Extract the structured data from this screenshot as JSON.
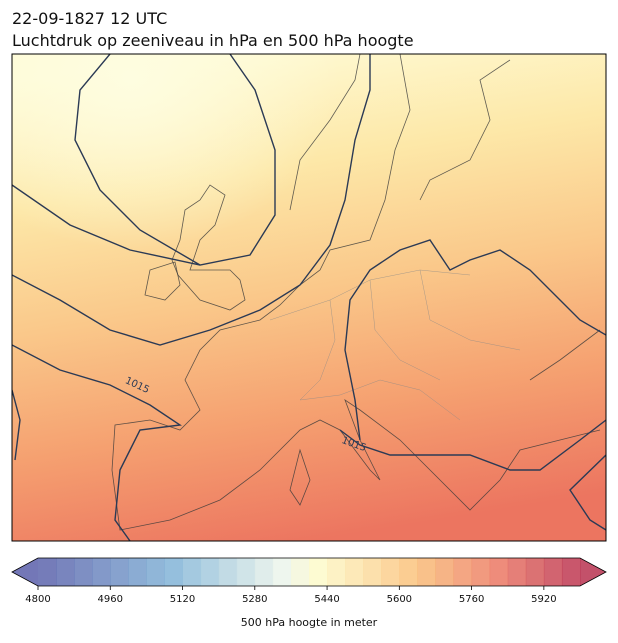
{
  "title": {
    "line1": "22-09-1827 12 UTC",
    "line2": "Luchtdruk op zeeniveau in hPa en 500 hPa hoogte"
  },
  "contour_labels": [
    "1015",
    "1015"
  ],
  "colorbar": {
    "range": [
      4800,
      6000
    ],
    "step": 40,
    "ticks": [
      4800,
      4960,
      5120,
      5280,
      5440,
      5600,
      5760,
      5920
    ],
    "label": "500 hPa hoogte in meter"
  }
}
